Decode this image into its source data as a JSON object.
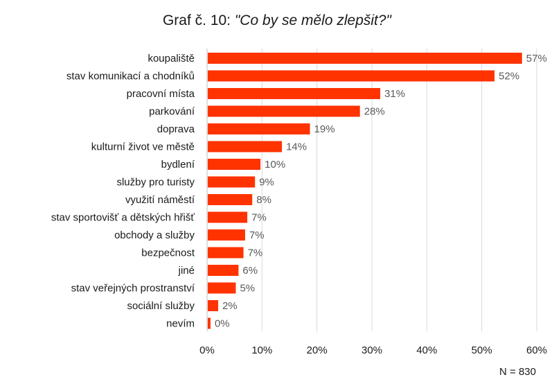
{
  "chart_data": {
    "type": "bar",
    "orientation": "horizontal",
    "title_prefix": "Graf č. 10: ",
    "title_quote": "\"Co by se mělo zlepšit?\"",
    "categories": [
      "koupaliště",
      "stav komunikací a chodníků",
      "pracovní místa",
      "parkování",
      "doprava",
      "kulturní život ve městě",
      "bydlení",
      "služby pro turisty",
      "využití náměstí",
      "stav sportovišť a dětských hřišť",
      "obchody a služby",
      "bezpečnost",
      "jiné",
      "stav veřejných prostranství",
      "sociální služby",
      "nevím"
    ],
    "values": [
      57.2,
      52.2,
      31.4,
      27.7,
      18.6,
      13.5,
      9.6,
      8.6,
      8.1,
      7.2,
      6.8,
      6.5,
      5.6,
      5.1,
      1.9,
      0.5
    ],
    "value_labels": [
      "57%",
      "52%",
      "31%",
      "28%",
      "19%",
      "14%",
      "10%",
      "9%",
      "8%",
      "7%",
      "7%",
      "7%",
      "6%",
      "5%",
      "2%",
      "0%"
    ],
    "xlim": [
      0,
      60
    ],
    "x_ticks": [
      0,
      10,
      20,
      30,
      40,
      50,
      60
    ],
    "x_tick_labels": [
      "0%",
      "10%",
      "20%",
      "30%",
      "40%",
      "50%",
      "60%"
    ],
    "grid": true,
    "bar_color": "#ff3300",
    "note": "N = 830"
  }
}
